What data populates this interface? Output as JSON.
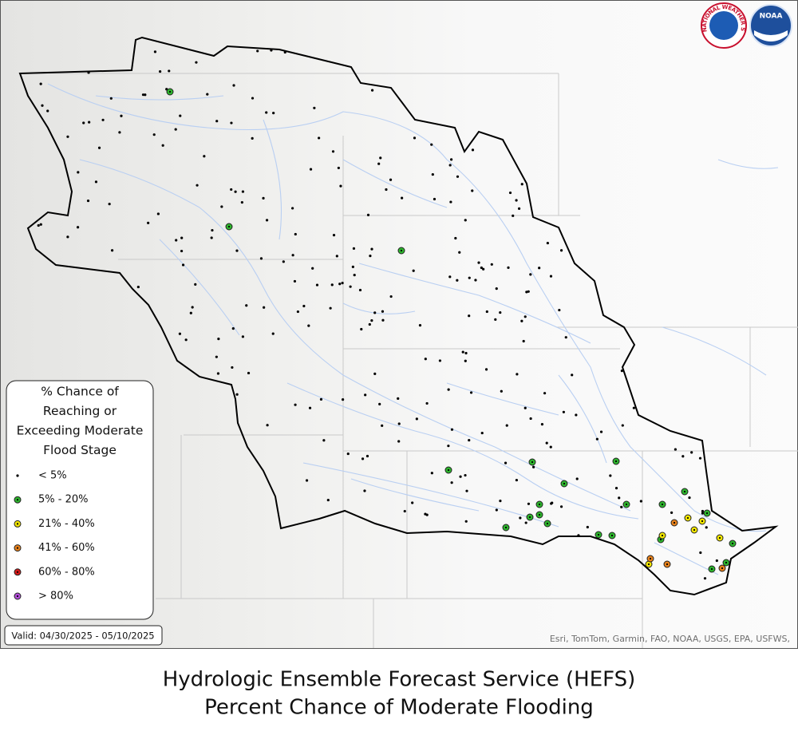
{
  "map": {
    "legend": {
      "title": [
        "% Chance of",
        "Reaching or",
        "Exceeding Moderate",
        "Flood Stage"
      ],
      "items": [
        {
          "label": "< 5%",
          "color": "#000000"
        },
        {
          "label": "5% - 20%",
          "color": "#2db52d"
        },
        {
          "label": "21% - 40%",
          "color": "#f2e600"
        },
        {
          "label": "41% - 60%",
          "color": "#e8821c"
        },
        {
          "label": "60% - 80%",
          "color": "#d61a1a"
        },
        {
          "label": "> 80%",
          "color": "#b34fd9"
        }
      ]
    },
    "valid": "Valid: 04/30/2025 - 05/10/2025",
    "attribution": "Esri, TomTom, Garmin, FAO, NOAA, USGS, EPA, USFWS,",
    "logos": {
      "nws": "NATIONAL WEATHER SERVICE",
      "noaa": "NOAA"
    }
  },
  "caption": [
    "Hydrologic Ensemble Forecast Service (HEFS)",
    "Percent Chance of Moderate Flooding"
  ]
}
